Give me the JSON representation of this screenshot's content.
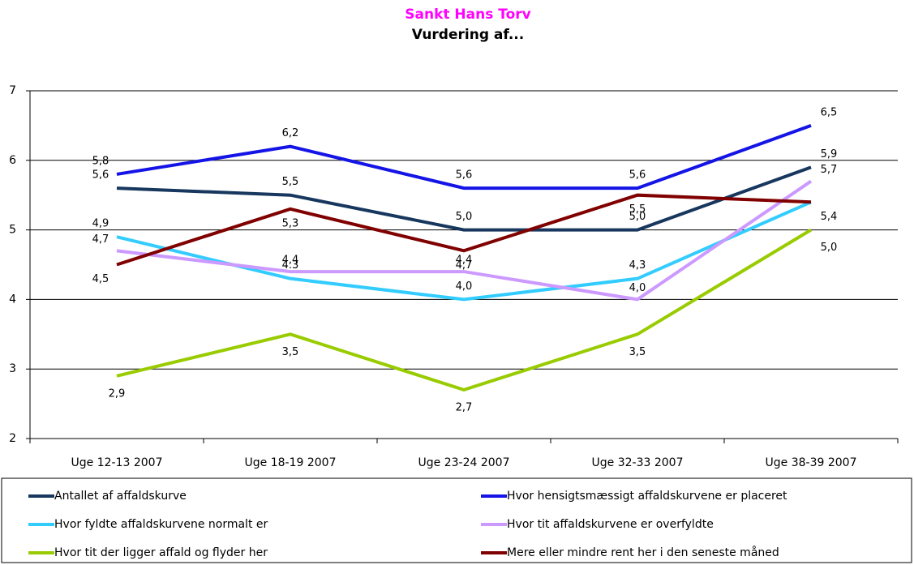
{
  "chart_data": {
    "type": "line",
    "title": "Sankt Hans Torv",
    "subtitle": "Vurdering af...",
    "categories": [
      "Uge 12-13 2007",
      "Uge 18-19 2007",
      "Uge 23-24 2007",
      "Uge 32-33 2007",
      "Uge 38-39 2007"
    ],
    "ylim": [
      2,
      7
    ],
    "yticks": [
      2,
      3,
      4,
      5,
      6,
      7
    ],
    "grid": true,
    "legend": "bottom",
    "series": [
      {
        "name": "Antallet af affaldskurve",
        "color": "#17375e",
        "values": [
          5.6,
          5.5,
          5.0,
          5.0,
          5.9
        ],
        "value_labels": [
          "5,6",
          "5,5",
          "5,0",
          "5,0",
          "5,9"
        ]
      },
      {
        "name": "Hvor hensigtsmæssigt affaldskurvene er placeret",
        "color": "#1414e6",
        "values": [
          5.8,
          6.2,
          5.6,
          5.6,
          6.5
        ],
        "value_labels": [
          "5,8",
          "6,2",
          "5,6",
          "5,6",
          "6,5"
        ]
      },
      {
        "name": "Hvor fyldte affaldskurvene normalt er",
        "color": "#33ccff",
        "values": [
          4.9,
          4.3,
          4.0,
          4.3,
          5.4
        ],
        "value_labels": [
          "4,9",
          "4.3",
          "4,0",
          "4,3",
          null
        ]
      },
      {
        "name": "Hvor tit affaldskurvene er overfyldte",
        "color": "#cc99ff",
        "values": [
          4.7,
          4.4,
          4.4,
          4.0,
          5.7
        ],
        "value_labels": [
          "4,7",
          "4,4",
          "4,4",
          "4,0",
          "5,7"
        ]
      },
      {
        "name": "Hvor tit der ligger affald og flyder her",
        "color": "#99cc00",
        "values": [
          2.9,
          3.5,
          2.7,
          3.5,
          5.0
        ],
        "value_labels": [
          "2,9",
          "3,5",
          "2,7",
          "3,5",
          "5,0"
        ]
      },
      {
        "name": "Mere eller mindre rent her i den seneste måned",
        "color": "#800000",
        "values": [
          4.5,
          5.3,
          4.7,
          5.5,
          5.4
        ],
        "value_labels": [
          "4,5",
          "5,3",
          "4,7",
          "5,5",
          "5,4"
        ]
      }
    ]
  }
}
